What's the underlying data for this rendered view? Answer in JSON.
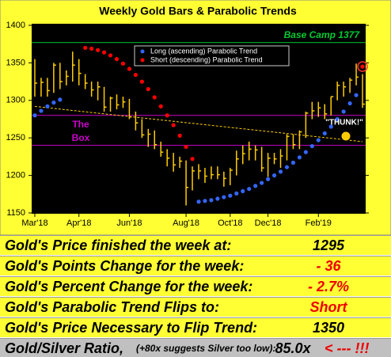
{
  "chart_data": {
    "type": "hlc",
    "title": "Weekly Gold Bars & Parabolic Trends",
    "categories": [
      "Mar'18",
      null,
      null,
      null,
      null,
      null,
      null,
      "Apr'18",
      null,
      null,
      null,
      null,
      null,
      null,
      null,
      "Jun'18",
      null,
      null,
      null,
      null,
      null,
      null,
      null,
      null,
      "Aug'18",
      null,
      null,
      null,
      null,
      null,
      null,
      "Oct'18",
      null,
      null,
      null,
      null,
      null,
      "Dec'18",
      null,
      null,
      null,
      null,
      null,
      null,
      null,
      "Feb'19",
      null,
      null,
      null,
      null,
      null,
      null,
      null
    ],
    "high": [
      1355,
      1330,
      1330,
      1350,
      1350,
      1340,
      1365,
      1355,
      1335,
      1325,
      1325,
      1318,
      1305,
      1308,
      1305,
      1302,
      1285,
      1275,
      1262,
      1260,
      1245,
      1235,
      1230,
      1225,
      1220,
      1212,
      1215,
      1210,
      1212,
      1212,
      1205,
      1210,
      1233,
      1240,
      1245,
      1240,
      1238,
      1230,
      1230,
      1235,
      1255,
      1255,
      1260,
      1285,
      1298,
      1298,
      1295,
      1305,
      1325,
      1325,
      1330,
      1349,
      1335
    ],
    "low": [
      1305,
      1305,
      1305,
      1310,
      1315,
      1320,
      1325,
      1320,
      1315,
      1305,
      1300,
      1285,
      1285,
      1288,
      1290,
      1275,
      1260,
      1250,
      1238,
      1235,
      1225,
      1212,
      1205,
      1210,
      1160,
      1180,
      1195,
      1190,
      1195,
      1195,
      1185,
      1187,
      1200,
      1215,
      1220,
      1220,
      1205,
      1198,
      1215,
      1210,
      1220,
      1235,
      1235,
      1250,
      1275,
      1278,
      1275,
      1280,
      1300,
      1305,
      1310,
      1320,
      1290
    ],
    "close": [
      1323,
      1324,
      1313,
      1347,
      1325,
      1332,
      1347,
      1336,
      1323,
      1314,
      1318,
      1291,
      1303,
      1294,
      1298,
      1278,
      1270,
      1254,
      1255,
      1241,
      1231,
      1223,
      1214,
      1219,
      1184,
      1206,
      1206,
      1199,
      1201,
      1201,
      1196,
      1207,
      1222,
      1229,
      1235,
      1234,
      1210,
      1223,
      1222,
      1226,
      1252,
      1241,
      1258,
      1283,
      1286,
      1290,
      1282,
      1305,
      1320,
      1318,
      1327,
      1331,
      1295
    ],
    "color": "#ffcc00",
    "series": [
      {
        "name": "Long (ascending) Parabolic Trend",
        "color": "#3366ff",
        "values": [
          1280,
          1286,
          1292,
          1297,
          1301,
          null,
          null,
          null,
          null,
          null,
          null,
          null,
          null,
          null,
          null,
          null,
          null,
          null,
          null,
          null,
          null,
          null,
          null,
          null,
          null,
          null,
          1165,
          1166,
          1167,
          1169,
          1171,
          1173,
          1176,
          1179,
          1182,
          1186,
          1190,
          1195,
          1200,
          1205,
          1211,
          1217,
          1224,
          1231,
          1239,
          1247,
          1256,
          1265,
          1275,
          1285,
          1296,
          1307,
          null
        ]
      },
      {
        "name": "Short (descending) Parabolic Trend",
        "color": "#ff0000",
        "values": [
          null,
          null,
          null,
          null,
          null,
          null,
          null,
          null,
          1370,
          1369,
          1367,
          1364,
          1360,
          1355,
          1349,
          1342,
          1334,
          1325,
          1315,
          1304,
          1292,
          1280,
          1267,
          1253,
          1238,
          1222,
          null,
          null,
          null,
          null,
          null,
          null,
          null,
          null,
          null,
          null,
          null,
          null,
          null,
          null,
          null,
          null,
          null,
          null,
          null,
          null,
          null,
          null,
          null,
          null,
          null,
          null,
          1345
        ]
      }
    ],
    "base_camp": {
      "value": 1377,
      "label": "Base Camp 1377",
      "color": "#00cc33"
    },
    "box": {
      "values": [
        1280,
        1240
      ],
      "label": [
        "The",
        "Box"
      ],
      "color": "#cc00cc"
    },
    "trendline": {
      "values": [
        1292,
        1245
      ],
      "color": "#ffcc00"
    },
    "annotation": "\"THUNK!\"",
    "ylim": [
      1150,
      1400
    ],
    "yticks": [
      1150,
      1200,
      1250,
      1300,
      1350,
      1400
    ]
  },
  "table": {
    "rows": [
      [
        "Gold's Price finished the week at:",
        "1295"
      ],
      [
        "Gold's Points Change for the week:",
        "- 36"
      ],
      [
        "Gold's Percent Change for the week:",
        "- 2.7%"
      ],
      [
        "Gold's Parabolic Trend Flips to:",
        "Short"
      ],
      [
        "Gold's Price Necessary to Flip Trend:",
        "1350"
      ]
    ],
    "ratio": {
      "label": "Gold/Silver Ratio,",
      "note": "(+80x suggests Silver too low):",
      "value": "85.0x",
      "arrow": "< --- !!!"
    }
  }
}
